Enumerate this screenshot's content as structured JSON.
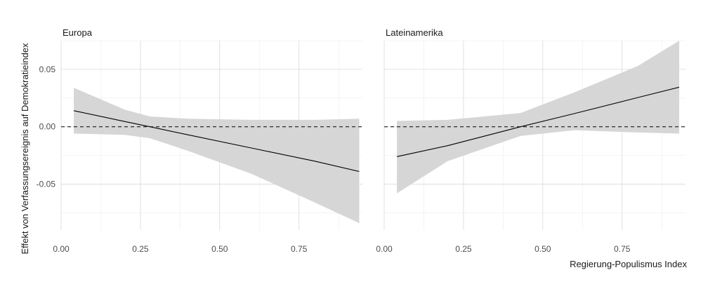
{
  "chart_data": {
    "type": "line",
    "ylabel": "Effekt von Verfassungsereignis auf Demokratieindex",
    "xlabel": "Regierung-Populismus Index",
    "xlim": [
      0,
      0.95
    ],
    "ylim": [
      -0.09,
      0.075
    ],
    "x_ticks": [
      0.0,
      0.25,
      0.5,
      0.75
    ],
    "x_tick_labels": [
      "0.00",
      "0.25",
      "0.50",
      "0.75"
    ],
    "y_ticks": [
      0.05,
      0.0,
      -0.05
    ],
    "y_tick_labels": [
      "0.05",
      "0.00",
      "-0.05"
    ],
    "reference_line": {
      "y": 0,
      "style": "dashed"
    },
    "grid": true,
    "colors": {
      "line": "#000000",
      "band": "#d6d6d6",
      "reference": "#000000"
    },
    "panels": [
      {
        "title": "Europa",
        "x": [
          0.04,
          0.2,
          0.28,
          0.4,
          0.6,
          0.8,
          0.94
        ],
        "estimate": [
          0.014,
          0.0046,
          0.0,
          -0.007,
          -0.0185,
          -0.03,
          -0.039
        ],
        "ci_lower": [
          -0.006,
          -0.007,
          -0.01,
          -0.021,
          -0.041,
          -0.066,
          -0.084
        ],
        "ci_upper": [
          0.034,
          0.015,
          0.009,
          0.007,
          0.006,
          0.006,
          0.007
        ]
      },
      {
        "title": "Lateinamerika",
        "x": [
          0.04,
          0.2,
          0.43,
          0.6,
          0.8,
          0.93
        ],
        "estimate": [
          -0.026,
          -0.0165,
          0.0,
          0.0115,
          0.0255,
          0.0345
        ],
        "ci_lower": [
          -0.058,
          -0.03,
          -0.008,
          -0.003,
          -0.005,
          -0.006
        ],
        "ci_upper": [
          0.005,
          0.006,
          0.012,
          0.03,
          0.053,
          0.075
        ]
      }
    ]
  }
}
